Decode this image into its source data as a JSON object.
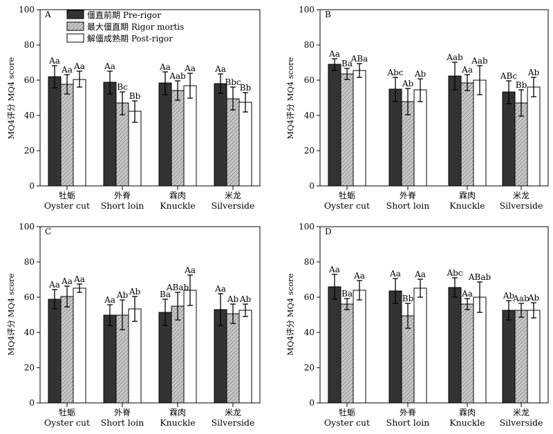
{
  "legend": [
    {
      "name": "僵直前期 Pre-rigor",
      "color": "#333333",
      "pattern": "solid"
    },
    {
      "name": "最大僵直期 Rigor mortis",
      "color": "#c8c8c8",
      "pattern": "hatch"
    },
    {
      "name": "解僵成熟期 Post-rigor",
      "color": "#ffffff",
      "pattern": "none"
    }
  ],
  "chart_data": [
    {
      "type": "bar",
      "panel": "A",
      "ylabel": "MQ4评分 MQ4 score",
      "ylim": [
        0,
        100
      ],
      "yticks": [
        0,
        20,
        40,
        60,
        80,
        100
      ],
      "categories_cn": [
        "牡蛎",
        "外脊",
        "霖肉",
        "米龙"
      ],
      "categories_en": [
        "Oyster cut",
        "Short loin",
        "Knuckle",
        "Silverside"
      ],
      "series": [
        {
          "name": "僵直前期 Pre-rigor",
          "values": [
            62,
            59,
            58.5,
            58
          ],
          "errors": [
            6.5,
            6.5,
            6.5,
            5.5
          ],
          "labels": [
            "Aa",
            "Aa",
            "Aa",
            "Aa"
          ]
        },
        {
          "name": "最大僵直期 Rigor mortis",
          "values": [
            57.5,
            47,
            54,
            49.5
          ],
          "errors": [
            5.5,
            6.5,
            5.5,
            6.5
          ],
          "labels": [
            "Aa",
            "Bc",
            "Aab",
            "Bbc"
          ]
        },
        {
          "name": "解僵成熟期 Post-rigor",
          "values": [
            60.5,
            42.5,
            57,
            47.5
          ],
          "errors": [
            4.5,
            6,
            7,
            5.5
          ],
          "labels": [
            "Aa",
            "Bb",
            "Aa",
            "Bb"
          ]
        }
      ]
    },
    {
      "type": "bar",
      "panel": "B",
      "ylabel": "MQ4评分 MQ4 score",
      "ylim": [
        0,
        100
      ],
      "yticks": [
        0,
        20,
        40,
        60,
        80,
        100
      ],
      "categories_cn": [
        "牡蛎",
        "外脊",
        "霖肉",
        "米龙"
      ],
      "categories_en": [
        "Oyster cut",
        "Short loin",
        "Knuckle",
        "Silverside"
      ],
      "series": [
        {
          "name": "僵直前期 Pre-rigor",
          "values": [
            69,
            55,
            62.5,
            53.5
          ],
          "errors": [
            3.5,
            7,
            8,
            6.5
          ],
          "labels": [
            "Aa",
            "Abc",
            "Aab",
            "ABc"
          ]
        },
        {
          "name": "最大僵直期 Rigor mortis",
          "values": [
            63.5,
            48,
            58.5,
            47
          ],
          "errors": [
            3,
            7.5,
            4.5,
            7.5
          ],
          "labels": [
            "Ba",
            "Ab",
            "Aa",
            "Bb"
          ]
        },
        {
          "name": "解僵成熟期 Post-rigor",
          "values": [
            65.5,
            54.5,
            60,
            56
          ],
          "errors": [
            4,
            6.5,
            8.5,
            5.5
          ],
          "labels": [
            "ABa",
            "Ab",
            "Aab",
            "Ab"
          ]
        }
      ]
    },
    {
      "type": "bar",
      "panel": "C",
      "ylabel": "MQ4评分 MQ4 score",
      "ylim": [
        0,
        100
      ],
      "yticks": [
        0,
        20,
        40,
        60,
        80,
        100
      ],
      "categories_cn": [
        "牡蛎",
        "外脊",
        "霖肉",
        "米龙"
      ],
      "categories_en": [
        "Oyster cut",
        "Short loin",
        "Knuckle",
        "Silverside"
      ],
      "series": [
        {
          "name": "僵直前期 Pre-rigor",
          "values": [
            59,
            50,
            51.5,
            53
          ],
          "errors": [
            5.5,
            6,
            7.5,
            9
          ],
          "labels": [
            "Aa",
            "Aa",
            "Ba",
            "Aa"
          ]
        },
        {
          "name": "最大僵直期 Rigor mortis",
          "values": [
            60.5,
            50,
            55,
            50.5
          ],
          "errors": [
            6,
            8.5,
            8,
            5.5
          ],
          "labels": [
            "Aa",
            "Ab",
            "ABab",
            "Ab"
          ]
        },
        {
          "name": "解僵成熟期 Post-rigor",
          "values": [
            65,
            53.5,
            64,
            52.5
          ],
          "errors": [
            2.5,
            7,
            8.5,
            3.5
          ],
          "labels": [
            "Aa",
            "Ab",
            "Aa",
            "Ab"
          ]
        }
      ]
    },
    {
      "type": "bar",
      "panel": "D",
      "ylabel": "MQ4评分 MQ4 score",
      "ylim": [
        0,
        100
      ],
      "yticks": [
        0,
        20,
        40,
        60,
        80,
        100
      ],
      "categories_cn": [
        "牡蛎",
        "外脊",
        "霖肉",
        "米龙"
      ],
      "categories_en": [
        "Oyster cut",
        "Short loin",
        "Knuckle",
        "Silverside"
      ],
      "series": [
        {
          "name": "僵直前期 Pre-rigor",
          "values": [
            66,
            63.5,
            65.5,
            52.5
          ],
          "errors": [
            7,
            7,
            5.5,
            5.5
          ],
          "labels": [
            "Aa",
            "Aa",
            "Abc",
            "Ab"
          ]
        },
        {
          "name": "最大僵直期 Rigor mortis",
          "values": [
            56,
            49.5,
            56,
            52.5
          ],
          "errors": [
            3,
            7,
            3,
            4
          ],
          "labels": [
            "Ba",
            "Bb",
            "Aa",
            "Aab"
          ]
        },
        {
          "name": "解僵成熟期 Post-rigor",
          "values": [
            64,
            65,
            60,
            52.5
          ],
          "errors": [
            5.5,
            5,
            8.5,
            4.5
          ],
          "labels": [
            "Aa",
            "Aa",
            "ABab",
            "Ab"
          ]
        }
      ]
    }
  ]
}
